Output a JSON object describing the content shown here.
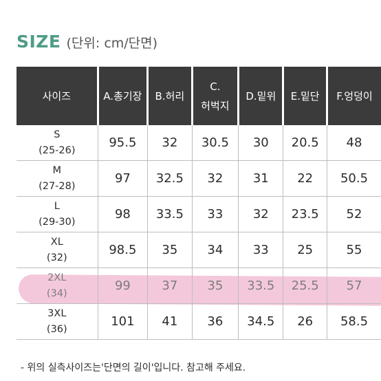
{
  "colors": {
    "title_green": "#4f9c86",
    "header_bg": "#3b3b3b",
    "highlight_pink": "#f0b6cf"
  },
  "title": {
    "label": "SIZE",
    "unit": "(단위: cm/단면)"
  },
  "table": {
    "headers": [
      "사이즈",
      "A.총기장",
      "B.허리",
      "C.허벅지",
      "D.밑위",
      "E.밑단",
      "F.엉덩이"
    ],
    "rows": [
      {
        "size": "S",
        "range": "(25-26)",
        "values": [
          "95.5",
          "32",
          "30.5",
          "30",
          "20.5",
          "48"
        ]
      },
      {
        "size": "M",
        "range": "(27-28)",
        "values": [
          "97",
          "32.5",
          "32",
          "31",
          "22",
          "50.5"
        ]
      },
      {
        "size": "L",
        "range": "(29-30)",
        "values": [
          "98",
          "33.5",
          "33",
          "32",
          "23.5",
          "52"
        ]
      },
      {
        "size": "XL",
        "range": "(32)",
        "values": [
          "98.5",
          "35",
          "34",
          "33",
          "25",
          "55"
        ]
      },
      {
        "size": "2XL",
        "range": "(34)",
        "values": [
          "99",
          "37",
          "35",
          "33.5",
          "25.5",
          "57"
        ]
      },
      {
        "size": "3XL",
        "range": "(36)",
        "values": [
          "101",
          "41",
          "36",
          "34.5",
          "26",
          "58.5"
        ]
      }
    ],
    "highlighted_row_index": 4
  },
  "notes": [
    "- 위의 실측사이즈는'단면의 길이'입니다. 참고해 주세요."
  ]
}
